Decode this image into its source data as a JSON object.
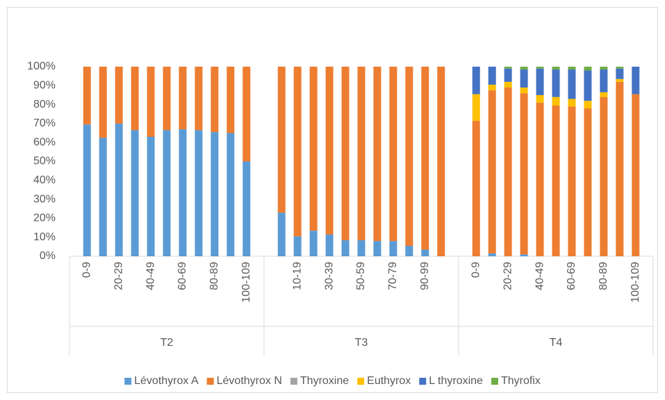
{
  "chart_data": {
    "type": "stacked_bar_percent",
    "groups": [
      "T2",
      "T3",
      "T4"
    ],
    "categories": [
      "0-9",
      null,
      "20-29",
      null,
      "40-49",
      null,
      "60-69",
      null,
      "80-89",
      null,
      "100-109",
      null,
      "10-19",
      null,
      "30-39",
      null,
      "50-59",
      null,
      "70-79",
      null,
      "90-99",
      null,
      "0-9",
      null,
      "20-29",
      null,
      "40-49",
      null,
      "60-69",
      null,
      "80-89",
      null,
      "100-109"
    ],
    "series": [
      {
        "name": "Lévothyrox A",
        "color": "#5b9bd5",
        "values": [
          69.5,
          62.5,
          70,
          66.5,
          63,
          66.5,
          67,
          66.5,
          65.5,
          65,
          50,
          23,
          10.5,
          13.5,
          11.5,
          8.5,
          8.5,
          8,
          8,
          5.5,
          3.5,
          0,
          0,
          1.5,
          0,
          1,
          0,
          0,
          0,
          0,
          0,
          0,
          0
        ]
      },
      {
        "name": "Lévothyrox N",
        "color": "#ed7d31",
        "values": [
          30.5,
          37.5,
          30,
          33.5,
          37,
          33.5,
          33,
          33.5,
          34.5,
          35,
          50,
          77,
          89.5,
          86.5,
          88.5,
          91.5,
          91.5,
          92,
          92,
          94.5,
          96.5,
          100,
          71.5,
          86,
          89,
          85,
          81,
          79.5,
          79,
          78,
          84,
          92,
          85.5
        ]
      },
      {
        "name": "Thyroxine",
        "color": "#a5a5a5",
        "values": [
          0,
          0,
          0,
          0,
          0,
          0,
          0,
          0,
          0,
          0,
          0,
          0,
          0,
          0,
          0,
          0,
          0,
          0,
          0,
          0,
          0,
          0,
          0,
          0,
          0,
          0,
          0,
          0,
          0,
          0,
          0,
          0,
          0
        ]
      },
      {
        "name": "Euthyrox",
        "color": "#ffc000",
        "values": [
          0,
          0,
          0,
          0,
          0,
          0,
          0,
          0,
          0,
          0,
          0,
          0,
          0,
          0,
          0,
          0,
          0,
          0,
          0,
          0,
          0,
          0,
          14,
          3,
          3,
          3,
          4,
          4.5,
          4,
          4,
          2.5,
          1.5,
          0
        ]
      },
      {
        "name": "L thyroxine",
        "color": "#4472c4",
        "values": [
          0,
          0,
          0,
          0,
          0,
          0,
          0,
          0,
          0,
          0,
          0,
          0,
          0,
          0,
          0,
          0,
          0,
          0,
          0,
          0,
          0,
          0,
          14.5,
          9.5,
          7,
          9.5,
          14,
          14.5,
          15.5,
          16,
          12,
          5.5,
          14.5
        ]
      },
      {
        "name": "Thyrofix",
        "color": "#70ad47",
        "values": [
          0,
          0,
          0,
          0,
          0,
          0,
          0,
          0,
          0,
          0,
          0,
          0,
          0,
          0,
          0,
          0,
          0,
          0,
          0,
          0,
          0,
          0,
          0,
          0,
          1,
          1.5,
          1,
          1.5,
          1.5,
          2,
          1.5,
          1,
          0
        ]
      }
    ],
    "ylim": [
      0,
      100
    ],
    "yticks": [
      {
        "value": 0,
        "label": "0%"
      },
      {
        "value": 10,
        "label": "10%"
      },
      {
        "value": 20,
        "label": "20%"
      },
      {
        "value": 30,
        "label": "30%"
      },
      {
        "value": 40,
        "label": "40%"
      },
      {
        "value": 50,
        "label": "50%"
      },
      {
        "value": 60,
        "label": "60%"
      },
      {
        "value": 70,
        "label": "70%"
      },
      {
        "value": 80,
        "label": "80%"
      },
      {
        "value": 90,
        "label": "90%"
      },
      {
        "value": 100,
        "label": "100%"
      }
    ],
    "grid": false,
    "legend": "bottom"
  }
}
